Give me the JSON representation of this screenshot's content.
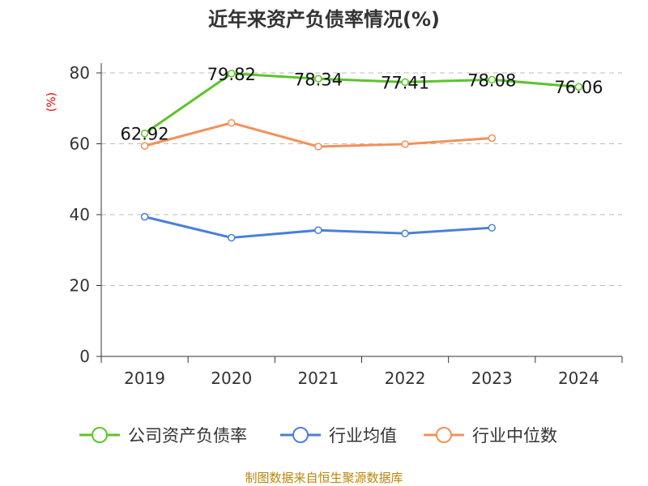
{
  "chart_data": {
    "type": "line",
    "title": "近年来资产负债率情况(%)",
    "ylabel": "(%)",
    "xlabel": "",
    "categories": [
      "2019",
      "2020",
      "2021",
      "2022",
      "2023",
      "2024"
    ],
    "ylim": [
      0,
      80
    ],
    "yticks": [
      0,
      20,
      40,
      60,
      80
    ],
    "grid": true,
    "legend_position": "bottom",
    "series": [
      {
        "name": "公司资产负债率",
        "color": "#5cc42b",
        "values": [
          62.92,
          79.82,
          78.34,
          77.41,
          78.08,
          76.06
        ],
        "labels": [
          "62.92",
          "79.82",
          "78.34",
          "77.41",
          "78.08",
          "76.06"
        ]
      },
      {
        "name": "行业均值",
        "color": "#4a7fdb",
        "values": [
          39.4,
          33.5,
          35.6,
          34.7,
          36.3,
          null
        ]
      },
      {
        "name": "行业中位数",
        "color": "#f5905a",
        "values": [
          59.4,
          65.9,
          59.2,
          59.9,
          61.6,
          null
        ]
      }
    ]
  },
  "source": "制图数据来自恒生聚源数据库"
}
